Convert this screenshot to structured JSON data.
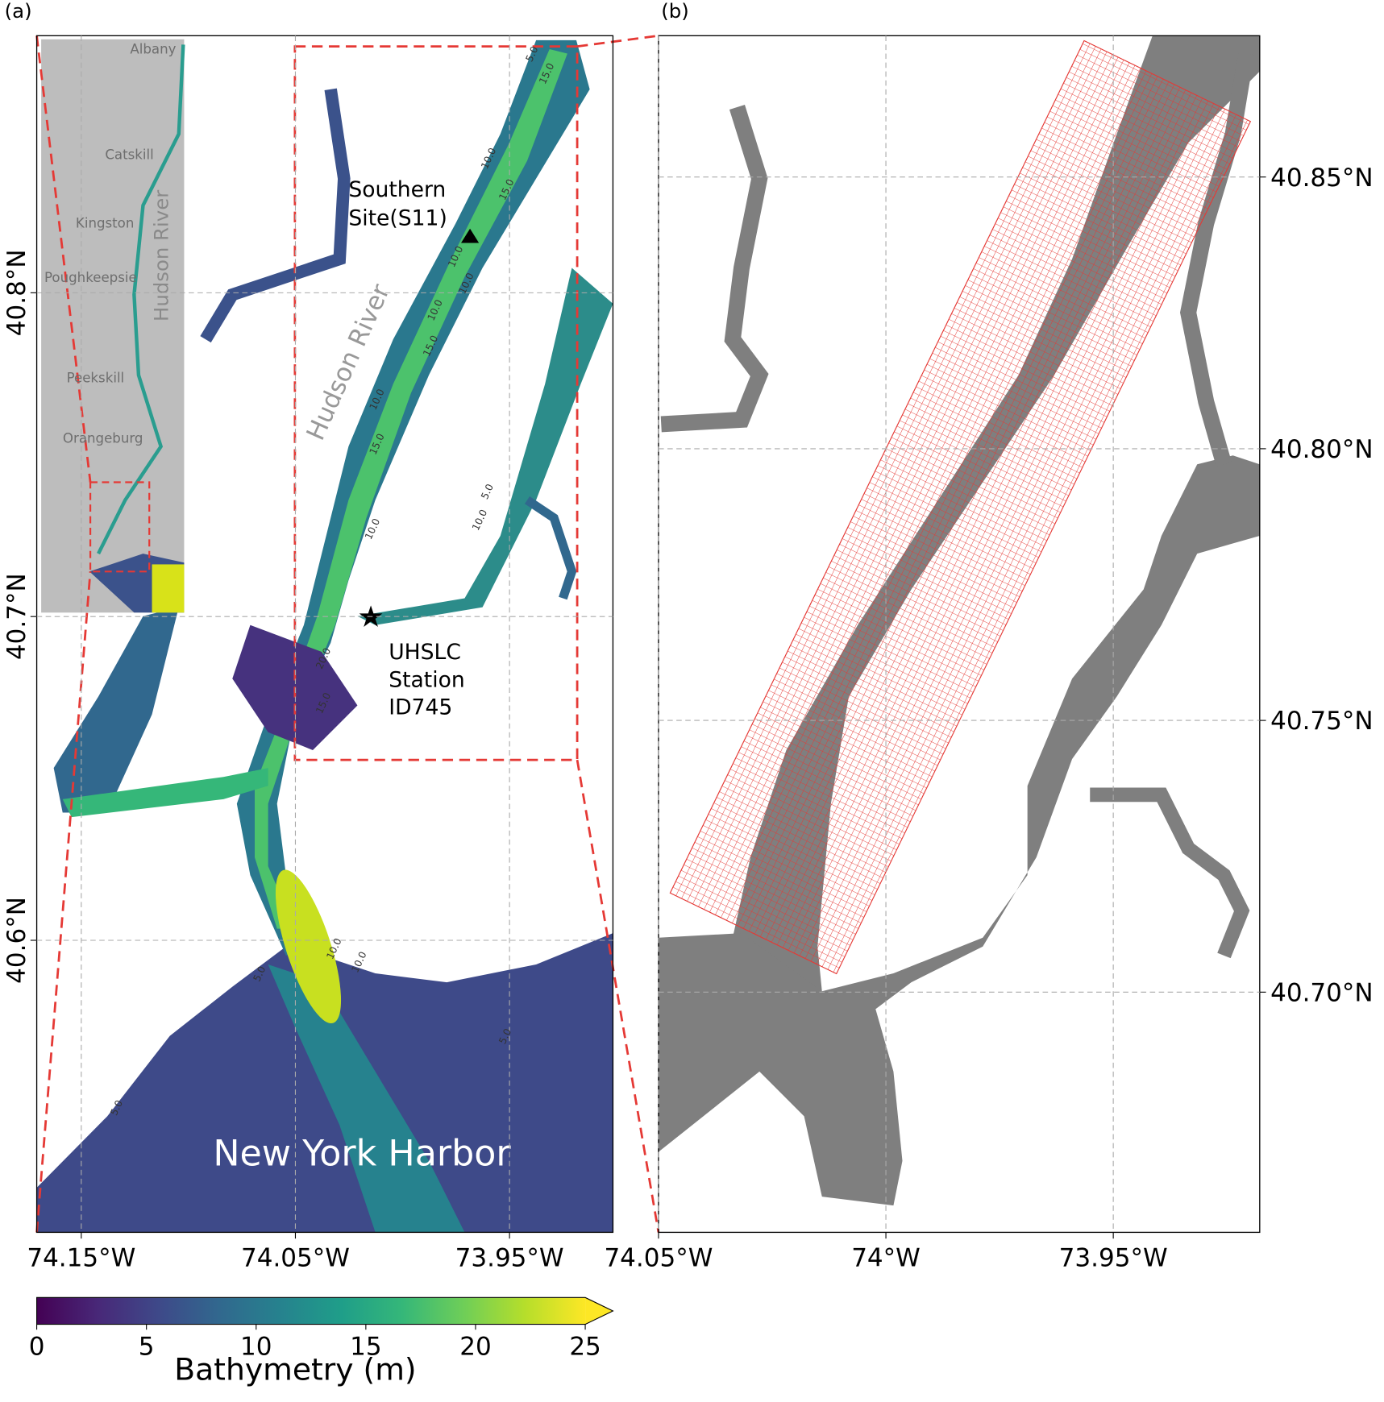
{
  "panel_a": {
    "label": "(a)",
    "xlim": [
      -74.1708,
      -73.9017
    ],
    "ylim": [
      40.5098,
      40.8794
    ],
    "xticks": [
      {
        "value": -74.15,
        "label": "74.15°W"
      },
      {
        "value": -74.05,
        "label": "74.05°W"
      },
      {
        "value": -73.95,
        "label": "73.95°W"
      }
    ],
    "yticks": [
      {
        "value": 40.6,
        "label": "40.6°N"
      },
      {
        "value": 40.7,
        "label": "40.7°N"
      },
      {
        "value": 40.8,
        "label": "40.8°N"
      }
    ],
    "grid": true,
    "annotations": {
      "southern_site": [
        "Southern",
        "Site(S11)"
      ],
      "uhslc": [
        "UHSLC",
        "Station",
        "ID745"
      ],
      "river": "Hudson River",
      "harbor": "New York Harbor"
    },
    "contour_labels": [
      "5.0",
      "15.0",
      "10.0",
      "15.0",
      "10.0",
      "10.0",
      "10.0",
      "15.0",
      "10.0",
      "5.0",
      "10.0",
      "15.0",
      "10.0",
      "20.0",
      "10.0",
      "15.0",
      "5.0",
      "5.0",
      "5.0",
      "10.0"
    ],
    "inset": {
      "places": [
        "Albany",
        "Catskill",
        "Kingston",
        "Poughkeepsie",
        "Peekskill",
        "Orangeburg"
      ],
      "river": "Hudson River"
    }
  },
  "panel_b": {
    "label": "(b)",
    "xlim": [
      -74.05,
      -73.9178
    ],
    "ylim": [
      40.6558,
      40.876
    ],
    "xticks": [
      {
        "value": -74.05,
        "label": "74.05°W"
      },
      {
        "value": -74,
        "label": "74°W"
      },
      {
        "value": -73.95,
        "label": "73.95°W"
      }
    ],
    "yticks": [
      {
        "value": 40.7,
        "label": "40.70°N"
      },
      {
        "value": 40.75,
        "label": "40.75°N"
      },
      {
        "value": 40.8,
        "label": "40.80°N"
      },
      {
        "value": 40.85,
        "label": "40.85°N"
      }
    ],
    "grid": true
  },
  "colorbar": {
    "label": "Bathymetry (m)",
    "lim": [
      0,
      25
    ],
    "ticks": [
      0,
      5,
      10,
      15,
      20,
      25
    ],
    "extend": "max",
    "colors": [
      "#440154",
      "#482878",
      "#3e4989",
      "#31688e",
      "#26828e",
      "#1f9e89",
      "#35b779",
      "#6ece58",
      "#b5de2b",
      "#fde725"
    ]
  }
}
